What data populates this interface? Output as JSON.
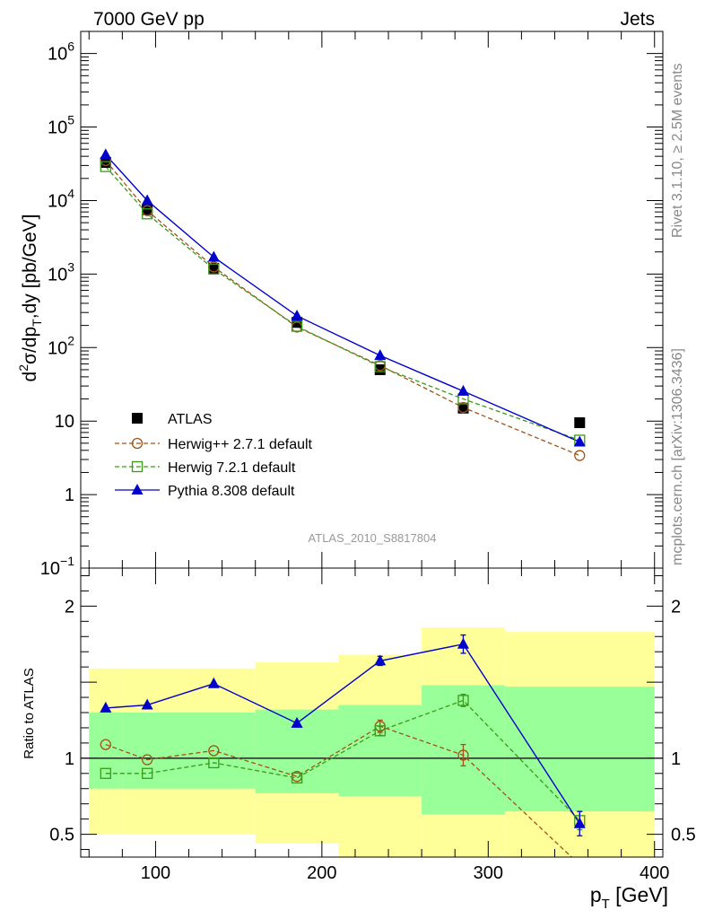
{
  "header": {
    "left": "7000 GeV pp",
    "right": "Jets"
  },
  "side_texts": {
    "rivet": "Rivet 3.1.10, ≥ 2.5M events",
    "mcplots": "mcplots.cern.ch [arXiv:1306.3436]"
  },
  "analysis_label": "ATLAS_2010_S8817804",
  "colors": {
    "data": "#000000",
    "herwigpp": "#a0521b",
    "herwig7": "#3a9a1a",
    "pythia": "#0000cc",
    "band_inner": "#99ff99",
    "band_outer": "#ffff99"
  },
  "chart_data": [
    {
      "type": "line",
      "panel": "main",
      "ylabel": "d²σ/dp_T,dy [pb/GeV]",
      "ylabel_parts": {
        "d": "d",
        "sup2": "2",
        "rest1": "σ/dp",
        "subT": "T",
        "rest2": ",dy [pb/GeV]"
      },
      "yscale": "log",
      "ylim": [
        0.1,
        2000000
      ],
      "xlim": [
        55,
        405
      ],
      "yticks": [
        {
          "value": 1000000,
          "label": "10",
          "exp": "6"
        },
        {
          "value": 100000,
          "label": "10",
          "exp": "5"
        },
        {
          "value": 10000,
          "label": "10",
          "exp": "4"
        },
        {
          "value": 1000,
          "label": "10",
          "exp": "3"
        },
        {
          "value": 100,
          "label": "10",
          "exp": "2"
        },
        {
          "value": 10,
          "label": "10",
          "exp": ""
        },
        {
          "value": 1,
          "label": "1",
          "exp": ""
        },
        {
          "value": 0.1,
          "label": "10",
          "exp": "−1"
        }
      ],
      "x": [
        70,
        95,
        135,
        185,
        235,
        285,
        355
      ],
      "series": [
        {
          "name": "ATLAS",
          "key": "data",
          "values": [
            33000,
            7500,
            1200,
            220,
            50,
            15,
            9.5
          ]
        },
        {
          "name": "Herwig++ 2.7.1 default",
          "key": "herwigpp",
          "values": [
            35000,
            7300,
            1250,
            190,
            57,
            15.3,
            3.4
          ]
        },
        {
          "name": "Herwig 7.2.1 default",
          "key": "herwig7",
          "values": [
            29000,
            6600,
            1170,
            195,
            55,
            20,
            5.5
          ]
        },
        {
          "name": "Pythia 8.308 default",
          "key": "pythia",
          "values": [
            42000,
            10000,
            1700,
            270,
            78,
            25.5,
            5.2
          ]
        }
      ]
    },
    {
      "type": "line",
      "panel": "ratio",
      "ylabel": "Ratio to ATLAS",
      "ylim": [
        0.35,
        2.25
      ],
      "xlim": [
        55,
        405
      ],
      "yticks": [
        {
          "value": 0.5,
          "label": "0.5"
        },
        {
          "value": 1,
          "label": "1"
        },
        {
          "value": 2,
          "label": "2"
        }
      ],
      "xticks": [
        {
          "value": 100,
          "label": "100"
        },
        {
          "value": 200,
          "label": "200"
        },
        {
          "value": 300,
          "label": "300"
        },
        {
          "value": 400,
          "label": "400"
        }
      ],
      "xlabel_parts": {
        "p": "p",
        "subT": "T",
        "rest": " [GeV]"
      },
      "bins": [
        {
          "lo": 60,
          "hi": 80,
          "inner": [
            0.8,
            1.3
          ],
          "outer": [
            0.5,
            1.59
          ]
        },
        {
          "lo": 80,
          "hi": 110,
          "inner": [
            0.8,
            1.3
          ],
          "outer": [
            0.5,
            1.59
          ]
        },
        {
          "lo": 110,
          "hi": 160,
          "inner": [
            0.8,
            1.3
          ],
          "outer": [
            0.5,
            1.59
          ]
        },
        {
          "lo": 160,
          "hi": 210,
          "inner": [
            0.77,
            1.32
          ],
          "outer": [
            0.44,
            1.63
          ]
        },
        {
          "lo": 210,
          "hi": 260,
          "inner": [
            0.75,
            1.35
          ],
          "outer": [
            0.35,
            1.68
          ]
        },
        {
          "lo": 260,
          "hi": 310,
          "inner": [
            0.63,
            1.48
          ],
          "outer": [
            0.35,
            1.86
          ]
        },
        {
          "lo": 310,
          "hi": 400,
          "inner": [
            0.65,
            1.47
          ],
          "outer": [
            0.35,
            1.83
          ]
        }
      ],
      "x": [
        70,
        95,
        135,
        185,
        235,
        285,
        355
      ],
      "series": [
        {
          "name": "Herwig++ 2.7.1 default",
          "key": "herwigpp",
          "values": [
            1.09,
            0.99,
            1.05,
            0.88,
            1.21,
            1.02,
            0.3
          ],
          "errors": [
            0,
            0,
            0,
            0,
            0.04,
            0.07,
            0
          ]
        },
        {
          "name": "Herwig 7.2.1 default",
          "key": "herwig7",
          "values": [
            0.9,
            0.9,
            0.97,
            0.87,
            1.18,
            1.38,
            0.59
          ],
          "errors": [
            0,
            0,
            0,
            0,
            0.03,
            0.04,
            0.06
          ]
        },
        {
          "name": "Pythia 8.308 default",
          "key": "pythia",
          "values": [
            1.33,
            1.35,
            1.49,
            1.23,
            1.64,
            1.75,
            0.57
          ],
          "errors": [
            0,
            0,
            0,
            0,
            0.03,
            0.06,
            0.08
          ]
        }
      ]
    }
  ]
}
